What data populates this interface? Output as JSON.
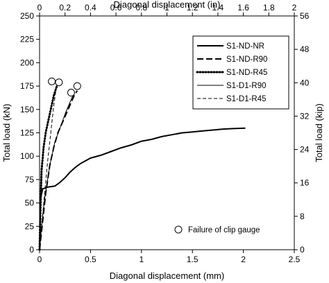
{
  "chart_data": {
    "type": "line",
    "title": "",
    "xlabel": "Diagonal displacement (mm)",
    "x2label": "Diagonal displacement (in)",
    "ylabel": "Total load (kN)",
    "y2label": "Total load (kip)",
    "xlim": [
      0,
      2.5
    ],
    "ylim": [
      0,
      250
    ],
    "x2lim": [
      0,
      2
    ],
    "y2lim": [
      0,
      56
    ],
    "xticks": [
      "0",
      "0.5",
      "1",
      "1.5",
      "2",
      "2.5"
    ],
    "yticks": [
      "0",
      "25",
      "50",
      "75",
      "100",
      "125",
      "150",
      "175",
      "200",
      "225",
      "250"
    ],
    "x2ticks": [
      "0",
      "0.2",
      "0.4",
      "0.6",
      "0.8",
      "1",
      "1.2",
      "1.4",
      "1.6",
      "1.8",
      "2"
    ],
    "y2ticks": [
      "0",
      "8",
      "16",
      "24",
      "32",
      "40",
      "48",
      "56"
    ],
    "grid": false,
    "legend_position": "top-right",
    "series": [
      {
        "name": "S1-ND-NR",
        "style": "solid-thick",
        "x": [
          0,
          0.01,
          0.03,
          0.08,
          0.15,
          0.2,
          0.25,
          0.3,
          0.35,
          0.4,
          0.45,
          0.5,
          0.6,
          0.7,
          0.8,
          0.9,
          1.0,
          1.1,
          1.2,
          1.3,
          1.4,
          1.5,
          1.6,
          1.7,
          1.8,
          1.9,
          2.02
        ],
        "y": [
          0,
          55,
          65,
          67,
          68,
          72,
          77,
          83,
          88,
          92,
          95,
          98,
          101,
          105,
          109,
          112,
          116,
          118,
          121,
          123,
          125,
          126,
          127,
          128,
          129,
          129.5,
          130
        ]
      },
      {
        "name": "S1-ND-R90",
        "style": "dashed-thick",
        "x": [
          0,
          0.03,
          0.06,
          0.1,
          0.14,
          0.18,
          0.22,
          0.26,
          0.3,
          0.34,
          0.37
        ],
        "y": [
          0,
          30,
          60,
          90,
          110,
          125,
          135,
          145,
          155,
          165,
          170
        ]
      },
      {
        "name": "S1-ND-R45",
        "style": "dotted-thick",
        "x": [
          0,
          0.01,
          0.02,
          0.04,
          0.06,
          0.08,
          0.1,
          0.12,
          0.14,
          0.16,
          0.18
        ],
        "y": [
          0,
          50,
          85,
          110,
          125,
          135,
          145,
          155,
          165,
          172,
          178
        ]
      },
      {
        "name": "S1-D1-R90",
        "style": "solid-thin",
        "x": [
          0,
          0.02,
          0.05,
          0.1,
          0.15,
          0.2,
          0.25,
          0.3,
          0.34
        ],
        "y": [
          0,
          25,
          55,
          90,
          115,
          130,
          145,
          158,
          168
        ]
      },
      {
        "name": "S1-D1-R45",
        "style": "dashed-thin",
        "x": [
          0,
          0.02,
          0.05,
          0.08,
          0.1,
          0.12,
          0.14,
          0.16,
          0.17
        ],
        "y": [
          0,
          25,
          60,
          95,
          115,
          135,
          155,
          170,
          178
        ]
      }
    ],
    "failure_markers": {
      "label": "Failure of clip gauge",
      "points": [
        {
          "x": 0.12,
          "y": 180
        },
        {
          "x": 0.19,
          "y": 179
        },
        {
          "x": 0.31,
          "y": 168
        },
        {
          "x": 0.37,
          "y": 175
        }
      ]
    }
  }
}
